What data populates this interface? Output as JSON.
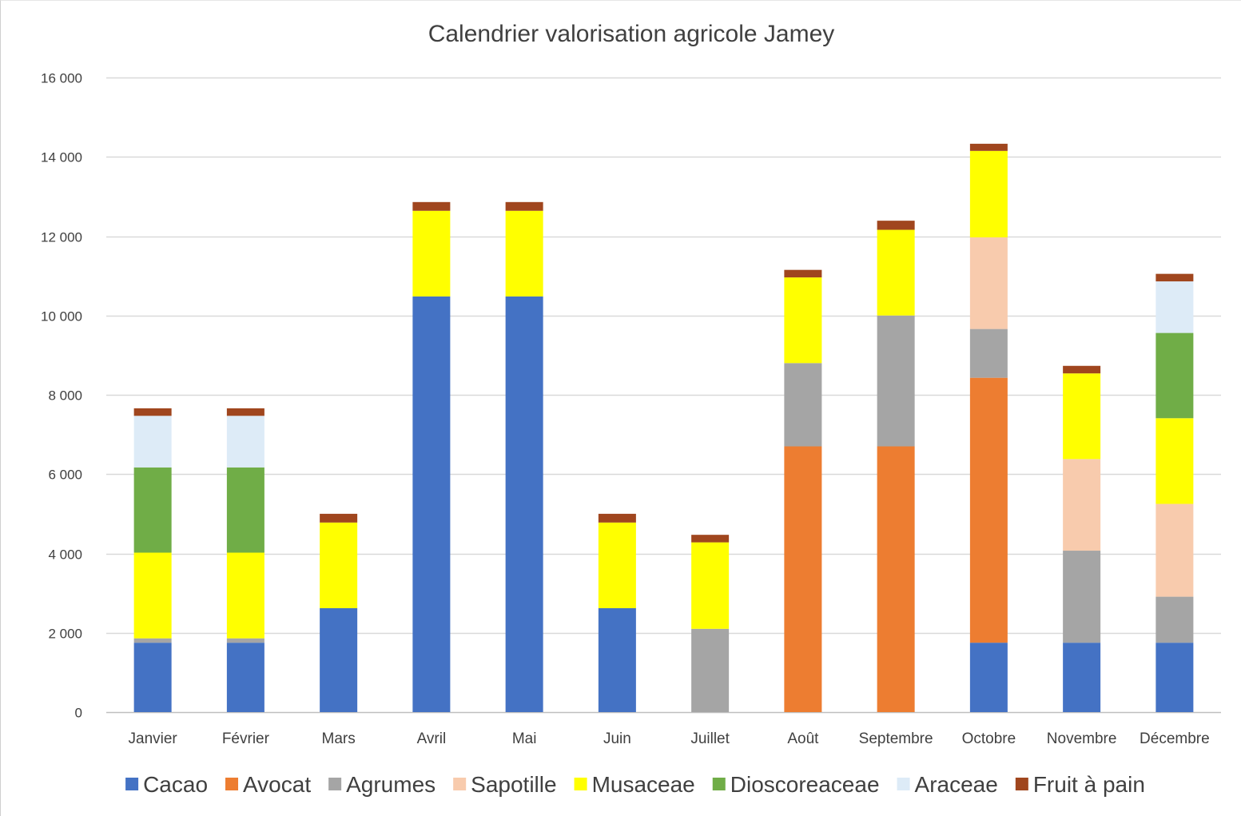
{
  "chart_data": {
    "type": "bar",
    "stacked": true,
    "title": "Calendrier valorisation agricole Jamey",
    "xlabel": "",
    "ylabel": "",
    "ylim": [
      0,
      16000
    ],
    "yticks": [
      0,
      2000,
      4000,
      6000,
      8000,
      10000,
      12000,
      14000,
      16000
    ],
    "ytick_labels": [
      "0",
      "2 000",
      "4 000",
      "6 000",
      "8 000",
      "10 000",
      "12 000",
      "14 000",
      "16 000"
    ],
    "grid": true,
    "legend_position": "bottom",
    "categories": [
      "Janvier",
      "Février",
      "Mars",
      "Avril",
      "Mai",
      "Juin",
      "Juillet",
      "Août",
      "Septembre",
      "Octobre",
      "Novembre",
      "Décembre"
    ],
    "series": [
      {
        "name": "Cacao",
        "color": "#4472C4",
        "values": [
          1750,
          1750,
          2620,
          10480,
          10480,
          2620,
          0,
          0,
          0,
          1750,
          1750,
          1750
        ]
      },
      {
        "name": "Avocat",
        "color": "#ED7D31",
        "values": [
          0,
          0,
          0,
          0,
          0,
          0,
          0,
          6700,
          6700,
          6680,
          0,
          0
        ]
      },
      {
        "name": "Agrumes",
        "color": "#A5A5A5",
        "values": [
          110,
          110,
          0,
          0,
          0,
          0,
          2100,
          2100,
          3300,
          1230,
          2320,
          1160
        ]
      },
      {
        "name": "Sapotille",
        "color": "#F8CBAD",
        "values": [
          0,
          0,
          0,
          0,
          0,
          0,
          0,
          0,
          0,
          2310,
          2310,
          2340
        ]
      },
      {
        "name": "Musaceae",
        "color": "#FFFF00",
        "values": [
          2160,
          2160,
          2160,
          2160,
          2160,
          2160,
          2180,
          2160,
          2160,
          2180,
          2160,
          2160
        ]
      },
      {
        "name": "Dioscoreaceae",
        "color": "#70AD47",
        "values": [
          2150,
          2150,
          0,
          0,
          0,
          0,
          0,
          0,
          0,
          0,
          0,
          2150
        ]
      },
      {
        "name": "Araceae",
        "color": "#DDEBF7",
        "values": [
          1300,
          1300,
          0,
          0,
          0,
          0,
          0,
          0,
          0,
          0,
          0,
          1300
        ]
      },
      {
        "name": "Fruit à pain",
        "color": "#A0461E",
        "values": [
          190,
          190,
          220,
          220,
          220,
          220,
          190,
          190,
          230,
          180,
          190,
          190
        ]
      }
    ]
  }
}
